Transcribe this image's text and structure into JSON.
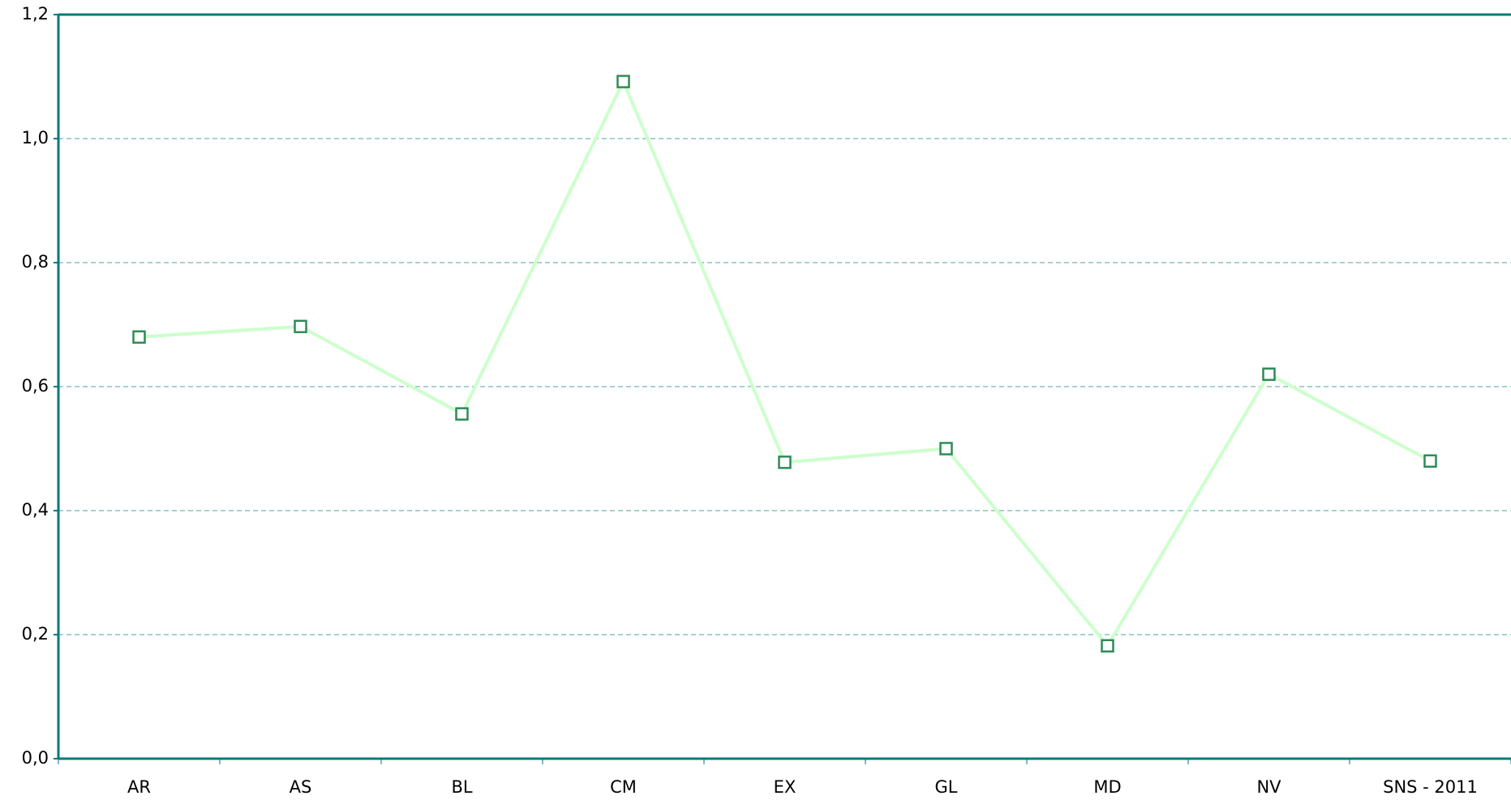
{
  "chart_data": {
    "type": "line",
    "categories": [
      "AR",
      "AS",
      "BL",
      "CM",
      "EX",
      "GL",
      "MD",
      "NV",
      "SNS - 2011"
    ],
    "series": [
      {
        "color": "#ccffcc",
        "marker_color": "#2e8b57",
        "values": [
          0.68,
          0.697,
          0.556,
          1.092,
          0.478,
          0.5,
          0.182,
          0.62,
          0.48
        ]
      }
    ],
    "ylim": [
      0,
      1.2
    ],
    "yticks": [
      {
        "value": 0,
        "label": "0,0"
      },
      {
        "value": 0.2,
        "label": "0,2"
      },
      {
        "value": 0.4,
        "label": "0,4"
      },
      {
        "value": 0.6,
        "label": "0,6"
      },
      {
        "value": 0.8,
        "label": "0,8"
      },
      {
        "value": 1.0,
        "label": "1,0"
      },
      {
        "value": 1.2,
        "label": "1,2"
      }
    ],
    "grid": true
  }
}
